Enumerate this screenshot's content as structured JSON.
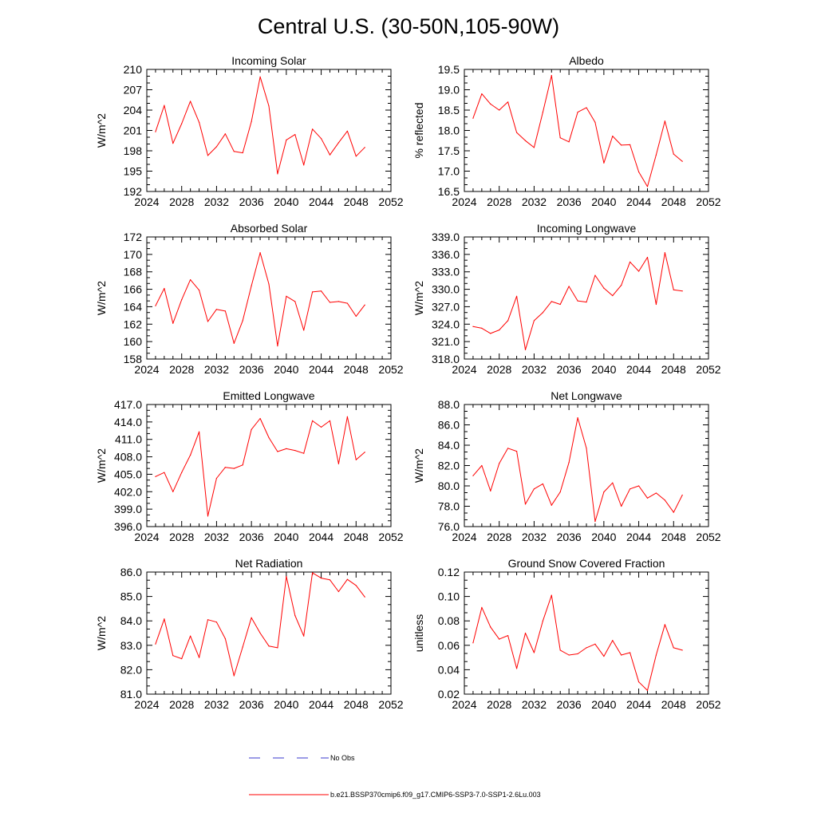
{
  "title": "Central U.S. (30-50N,105-90W)",
  "legend": {
    "entries": [
      {
        "label": "No Obs",
        "color": "#3a3acc",
        "style": "dashed"
      },
      {
        "label": "b.e21.BSSP370cmip6.f09_g17.CMIP6-SSP3-7.0-SSP1-2.6Lu.003",
        "color": "#ff0000",
        "style": "solid"
      }
    ]
  },
  "colors": {
    "series": "#ff0000",
    "axis": "#000000",
    "obs": "#3a3acc"
  },
  "chart_data": [
    {
      "type": "line",
      "title": "Incoming Solar",
      "ylabel": "W/m^2",
      "xlim": [
        2024,
        2052
      ],
      "ylim": [
        192,
        210
      ],
      "xticks": [
        "2024",
        "2028",
        "2032",
        "2036",
        "2040",
        "2044",
        "2048",
        "2052"
      ],
      "yticks": [
        "192",
        "195",
        "198",
        "201",
        "204",
        "207",
        "210"
      ],
      "series": [
        {
          "x": [
            2025,
            2026,
            2027,
            2028,
            2029,
            2030,
            2031,
            2032,
            2033,
            2034,
            2035,
            2036,
            2037,
            2038,
            2039,
            2040,
            2041,
            2042,
            2043,
            2044,
            2045,
            2046,
            2047,
            2048,
            2049
          ],
          "values": [
            200.8,
            204.7,
            199.1,
            202.0,
            205.3,
            202.2,
            197.3,
            198.6,
            200.5,
            197.9,
            197.7,
            202.3,
            208.9,
            204.6,
            194.6,
            199.6,
            200.4,
            195.9,
            201.2,
            199.8,
            197.4,
            199.2,
            200.9,
            197.2,
            198.5
          ]
        }
      ]
    },
    {
      "type": "line",
      "title": "Albedo",
      "ylabel": "% reflected",
      "xlim": [
        2024,
        2052
      ],
      "ylim": [
        16.5,
        19.5
      ],
      "xticks": [
        "2024",
        "2028",
        "2032",
        "2036",
        "2040",
        "2044",
        "2048",
        "2052"
      ],
      "yticks": [
        "16.5",
        "17.0",
        "17.5",
        "18.0",
        "18.5",
        "19.0",
        "19.5"
      ],
      "series": [
        {
          "x": [
            2025,
            2026,
            2027,
            2028,
            2029,
            2030,
            2031,
            2032,
            2033,
            2034,
            2035,
            2036,
            2037,
            2038,
            2039,
            2040,
            2041,
            2042,
            2043,
            2044,
            2045,
            2046,
            2047,
            2048,
            2049
          ],
          "values": [
            18.3,
            18.9,
            18.65,
            18.5,
            18.7,
            17.95,
            17.75,
            17.58,
            18.45,
            19.35,
            17.82,
            17.72,
            18.45,
            18.56,
            18.2,
            17.2,
            17.86,
            17.64,
            17.65,
            16.98,
            16.62,
            17.4,
            18.23,
            17.42,
            17.24
          ]
        }
      ]
    },
    {
      "type": "line",
      "title": "Absorbed Solar",
      "ylabel": "W/m^2",
      "xlim": [
        2024,
        2052
      ],
      "ylim": [
        158,
        172
      ],
      "xticks": [
        "2024",
        "2028",
        "2032",
        "2036",
        "2040",
        "2044",
        "2048",
        "2052"
      ],
      "yticks": [
        "158",
        "160",
        "162",
        "164",
        "166",
        "168",
        "170",
        "172"
      ],
      "series": [
        {
          "x": [
            2025,
            2026,
            2027,
            2028,
            2029,
            2030,
            2031,
            2032,
            2033,
            2034,
            2035,
            2036,
            2037,
            2038,
            2039,
            2040,
            2041,
            2042,
            2043,
            2044,
            2045,
            2046,
            2047,
            2048,
            2049
          ],
          "values": [
            164.1,
            166.1,
            162.1,
            164.8,
            167.1,
            165.9,
            162.3,
            163.7,
            163.5,
            159.8,
            162.4,
            166.4,
            170.2,
            166.6,
            159.5,
            165.2,
            164.6,
            161.3,
            165.7,
            165.8,
            164.5,
            164.6,
            164.4,
            162.9,
            164.2
          ]
        }
      ]
    },
    {
      "type": "line",
      "title": "Incoming Longwave",
      "ylabel": "W/m^2",
      "xlim": [
        2024,
        2052
      ],
      "ylim": [
        318,
        339
      ],
      "xticks": [
        "2024",
        "2028",
        "2032",
        "2036",
        "2040",
        "2044",
        "2048",
        "2052"
      ],
      "yticks": [
        "318.0",
        "321.0",
        "324.0",
        "327.0",
        "330.0",
        "333.0",
        "336.0",
        "339.0"
      ],
      "series": [
        {
          "x": [
            2025,
            2026,
            2027,
            2028,
            2029,
            2030,
            2031,
            2032,
            2033,
            2034,
            2035,
            2036,
            2037,
            2038,
            2039,
            2040,
            2041,
            2042,
            2043,
            2044,
            2045,
            2046,
            2047,
            2048,
            2049
          ],
          "values": [
            323.6,
            323.3,
            322.4,
            323.0,
            324.6,
            328.8,
            319.6,
            324.6,
            326.0,
            327.9,
            327.4,
            330.5,
            328.0,
            327.8,
            332.4,
            330.2,
            328.9,
            330.7,
            334.7,
            333.1,
            335.5,
            327.4,
            336.3,
            329.9,
            329.7
          ]
        }
      ]
    },
    {
      "type": "line",
      "title": "Emitted Longwave",
      "ylabel": "W/m^2",
      "xlim": [
        2024,
        2052
      ],
      "ylim": [
        396,
        417
      ],
      "xticks": [
        "2024",
        "2028",
        "2032",
        "2036",
        "2040",
        "2044",
        "2048",
        "2052"
      ],
      "yticks": [
        "396.0",
        "399.0",
        "402.0",
        "405.0",
        "408.0",
        "411.0",
        "414.0",
        "417.0"
      ],
      "series": [
        {
          "x": [
            2025,
            2026,
            2027,
            2028,
            2029,
            2030,
            2031,
            2032,
            2033,
            2034,
            2035,
            2036,
            2037,
            2038,
            2039,
            2040,
            2041,
            2042,
            2043,
            2044,
            2045,
            2046,
            2047,
            2048,
            2049
          ],
          "values": [
            404.6,
            405.3,
            402.0,
            405.3,
            408.3,
            412.3,
            397.8,
            404.3,
            406.2,
            406.0,
            406.6,
            412.7,
            414.6,
            411.3,
            408.9,
            409.4,
            409.1,
            408.6,
            414.2,
            413.1,
            414.2,
            406.8,
            414.9,
            407.5,
            408.8
          ]
        }
      ]
    },
    {
      "type": "line",
      "title": "Net Longwave",
      "ylabel": "W/m^2",
      "xlim": [
        2024,
        2052
      ],
      "ylim": [
        76,
        88
      ],
      "xticks": [
        "2024",
        "2028",
        "2032",
        "2036",
        "2040",
        "2044",
        "2048",
        "2052"
      ],
      "yticks": [
        "76.0",
        "78.0",
        "80.0",
        "82.0",
        "84.0",
        "86.0",
        "88.0"
      ],
      "series": [
        {
          "x": [
            2025,
            2026,
            2027,
            2028,
            2029,
            2030,
            2031,
            2032,
            2033,
            2034,
            2035,
            2036,
            2037,
            2038,
            2039,
            2040,
            2041,
            2042,
            2043,
            2044,
            2045,
            2046,
            2047,
            2048,
            2049
          ],
          "values": [
            81.0,
            82.0,
            79.5,
            82.2,
            83.7,
            83.4,
            78.2,
            79.7,
            80.2,
            78.1,
            79.4,
            82.3,
            86.7,
            83.7,
            76.5,
            79.4,
            80.3,
            78.0,
            79.7,
            80.0,
            78.8,
            79.3,
            78.6,
            77.4,
            79.1
          ]
        }
      ]
    },
    {
      "type": "line",
      "title": "Net Radiation",
      "ylabel": "W/m^2",
      "xlim": [
        2024,
        2052
      ],
      "ylim": [
        81,
        86
      ],
      "xticks": [
        "2024",
        "2028",
        "2032",
        "2036",
        "2040",
        "2044",
        "2048",
        "2052"
      ],
      "yticks": [
        "81.0",
        "82.0",
        "83.0",
        "84.0",
        "85.0",
        "86.0"
      ],
      "series": [
        {
          "x": [
            2025,
            2026,
            2027,
            2028,
            2029,
            2030,
            2031,
            2032,
            2033,
            2034,
            2035,
            2036,
            2037,
            2038,
            2039,
            2040,
            2041,
            2042,
            2043,
            2044,
            2045,
            2046,
            2047,
            2048,
            2049
          ],
          "values": [
            83.05,
            84.08,
            82.58,
            82.45,
            83.38,
            82.5,
            84.05,
            83.95,
            83.27,
            81.75,
            82.93,
            84.13,
            83.5,
            82.97,
            82.9,
            85.82,
            84.22,
            83.38,
            85.97,
            85.75,
            85.68,
            85.2,
            85.7,
            85.45,
            84.98
          ]
        }
      ]
    },
    {
      "type": "line",
      "title": "Ground Snow Covered Fraction",
      "ylabel": "unitless",
      "xlim": [
        2024,
        2052
      ],
      "ylim": [
        0.02,
        0.12
      ],
      "xticks": [
        "2024",
        "2028",
        "2032",
        "2036",
        "2040",
        "2044",
        "2048",
        "2052"
      ],
      "yticks": [
        "0.02",
        "0.04",
        "0.06",
        "0.08",
        "0.10",
        "0.12"
      ],
      "series": [
        {
          "x": [
            2025,
            2026,
            2027,
            2028,
            2029,
            2030,
            2031,
            2032,
            2033,
            2034,
            2035,
            2036,
            2037,
            2038,
            2039,
            2040,
            2041,
            2042,
            2043,
            2044,
            2045,
            2046,
            2047,
            2048,
            2049
          ],
          "values": [
            0.062,
            0.091,
            0.075,
            0.065,
            0.068,
            0.041,
            0.07,
            0.054,
            0.08,
            0.101,
            0.056,
            0.052,
            0.053,
            0.058,
            0.061,
            0.051,
            0.064,
            0.052,
            0.054,
            0.03,
            0.023,
            0.052,
            0.077,
            0.058,
            0.056
          ]
        }
      ]
    }
  ]
}
